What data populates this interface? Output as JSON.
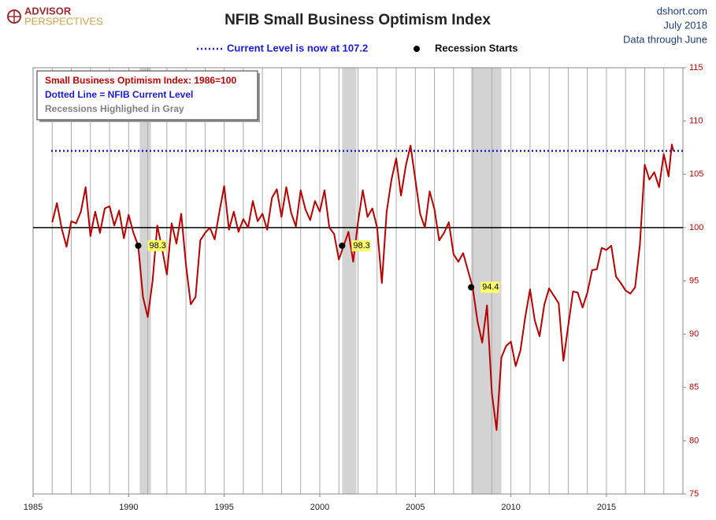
{
  "chart_data": {
    "type": "line",
    "title": "NFIB Small Business Optimism Index",
    "logo": [
      "ADVISOR",
      "PERSPECTIVES"
    ],
    "source": [
      "dshort.com",
      "July 2018",
      "Data through June"
    ],
    "notes": [
      {
        "text": "Small Business Optimism Index: 1986=100",
        "color": "#c00000"
      },
      {
        "text": "Dotted Line = NFIB Current Level",
        "color": "#1a1adb"
      },
      {
        "text": "Recessions Highlighed in Gray",
        "color": "#808080"
      }
    ],
    "color": "#b80000",
    "xlim": [
      1985,
      2019
    ],
    "ylim": [
      75,
      115
    ],
    "xticks": [
      1985,
      1990,
      1995,
      2000,
      2005,
      2010,
      2015
    ],
    "yticks": [
      75,
      80,
      85,
      90,
      95,
      100,
      105,
      110,
      115
    ],
    "year_grid": [
      1986,
      1987,
      1988,
      1989,
      1990,
      1991,
      1992,
      1993,
      1994,
      1995,
      1996,
      1997,
      1998,
      1999,
      2000,
      2001,
      2002,
      2003,
      2004,
      2005,
      2006,
      2007,
      2008,
      2009,
      2010,
      2011,
      2012,
      2013,
      2014,
      2015,
      2016,
      2017,
      2018
    ],
    "reference_line": 100,
    "current_level": {
      "value": 107.2,
      "label": "Current Level is now at 107.2",
      "color": "#1a1adb"
    },
    "recessions": [
      [
        1990.58,
        1991.17
      ],
      [
        2001.17,
        2001.92
      ],
      [
        2007.92,
        2009.5
      ]
    ],
    "recession_starts": {
      "label": "Recession Starts",
      "points": [
        {
          "x": 1990.5,
          "y": 98.3,
          "label": "98.3"
        },
        {
          "x": 2001.17,
          "y": 98.3,
          "label": "98.3"
        },
        {
          "x": 2007.92,
          "y": 94.4,
          "label": "94.4"
        }
      ]
    },
    "x": [
      1986,
      1986.25,
      1986.5,
      1986.75,
      1987,
      1987.25,
      1987.5,
      1987.75,
      1988,
      1988.25,
      1988.5,
      1988.75,
      1989,
      1989.25,
      1989.5,
      1989.75,
      1990,
      1990.25,
      1990.5,
      1990.75,
      1991,
      1991.25,
      1991.5,
      1991.75,
      1992,
      1992.25,
      1992.5,
      1992.75,
      1993,
      1993.25,
      1993.5,
      1993.75,
      1994,
      1994.25,
      1994.5,
      1994.75,
      1995,
      1995.25,
      1995.5,
      1995.75,
      1996,
      1996.25,
      1996.5,
      1996.75,
      1997,
      1997.25,
      1997.5,
      1997.75,
      1998,
      1998.25,
      1998.5,
      1998.75,
      1999,
      1999.25,
      1999.5,
      1999.75,
      2000,
      2000.25,
      2000.5,
      2000.75,
      2001,
      2001.25,
      2001.5,
      2001.75,
      2002,
      2002.25,
      2002.5,
      2002.75,
      2003,
      2003.25,
      2003.5,
      2003.75,
      2004,
      2004.25,
      2004.5,
      2004.75,
      2005,
      2005.25,
      2005.5,
      2005.75,
      2006,
      2006.25,
      2006.5,
      2006.75,
      2007,
      2007.25,
      2007.5,
      2007.75,
      2008,
      2008.25,
      2008.5,
      2008.75,
      2009,
      2009.25,
      2009.5,
      2009.75,
      2010,
      2010.25,
      2010.5,
      2010.75,
      2011,
      2011.25,
      2011.5,
      2011.75,
      2012,
      2012.25,
      2012.5,
      2012.75,
      2013,
      2013.25,
      2013.5,
      2013.75,
      2014,
      2014.25,
      2014.5,
      2014.75,
      2015,
      2015.25,
      2015.5,
      2015.75,
      2016,
      2016.25,
      2016.5,
      2016.75,
      2017,
      2017.25,
      2017.5,
      2017.75,
      2018,
      2018.25,
      2018.42,
      2018.5
    ],
    "values": [
      100.5,
      102.3,
      99.9,
      98.2,
      100.6,
      100.4,
      101.5,
      103.8,
      99.2,
      101.5,
      99.5,
      101.8,
      102.0,
      100.2,
      101.6,
      99.0,
      101.2,
      99.5,
      98.3,
      93.5,
      91.6,
      95.0,
      100.2,
      98.0,
      95.6,
      100.4,
      98.5,
      101.3,
      96.5,
      92.8,
      93.5,
      98.8,
      99.5,
      100.0,
      98.9,
      101.5,
      103.9,
      99.8,
      101.5,
      99.6,
      100.8,
      100.0,
      102.5,
      100.6,
      101.3,
      99.8,
      102.8,
      103.6,
      101.0,
      103.8,
      101.4,
      100.1,
      103.5,
      101.7,
      100.7,
      102.5,
      101.5,
      103.5,
      100.0,
      99.4,
      97.0,
      98.3,
      99.6,
      96.8,
      100.5,
      103.5,
      101.0,
      101.8,
      100.0,
      94.8,
      101.5,
      104.5,
      106.5,
      103.0,
      105.8,
      107.7,
      104.5,
      101.3,
      100.0,
      103.4,
      101.7,
      98.8,
      99.5,
      100.5,
      97.5,
      96.8,
      97.6,
      96.0,
      94.4,
      91.2,
      89.2,
      92.7,
      84.5,
      81.0,
      87.8,
      88.9,
      89.3,
      87.0,
      88.5,
      91.6,
      94.2,
      91.3,
      89.8,
      92.8,
      94.3,
      93.6,
      92.9,
      87.5,
      90.8,
      94.0,
      93.9,
      92.5,
      93.9,
      96.0,
      96.1,
      98.1,
      97.9,
      98.3,
      95.4,
      94.8,
      94.1,
      93.8,
      94.4,
      98.4,
      105.9,
      104.5,
      105.2,
      103.8,
      106.9,
      104.8,
      107.8,
      107.2
    ]
  }
}
